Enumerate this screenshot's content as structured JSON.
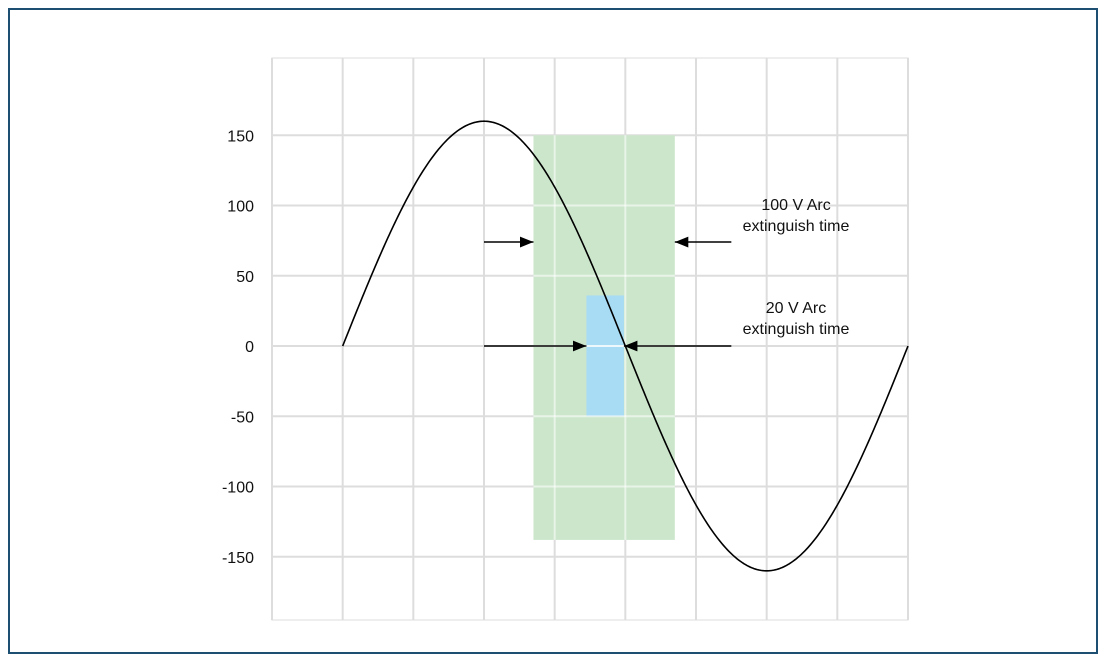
{
  "chart_data": {
    "type": "line",
    "title": "",
    "xlabel": "",
    "ylabel": "",
    "ylim": [
      -195,
      205
    ],
    "xlim": [
      -1.0,
      8.0
    ],
    "x_gridlines": [
      -1,
      0,
      1,
      2,
      3,
      4,
      5,
      6,
      7,
      8
    ],
    "y_ticks": [
      150,
      100,
      50,
      0,
      -50,
      -100,
      -150
    ],
    "y_tick_labels": [
      "150",
      "100",
      "50",
      "0",
      "-50",
      "-100",
      "-150"
    ],
    "grid": true,
    "series": [
      {
        "type": "sine",
        "amplitude": 160,
        "x_start": 0,
        "x_end": 8.0,
        "period": 8.0,
        "color": "#000000"
      }
    ],
    "regions": [
      {
        "label": "100 V Arc extinguish time",
        "x": [
          2.7,
          4.7
        ],
        "y": [
          -138,
          150
        ],
        "color": "#cce6cc"
      },
      {
        "label": "20 V Arc extinguish time",
        "x": [
          3.45,
          3.98
        ],
        "y": [
          -50,
          36
        ],
        "color": "#a8dcf4"
      }
    ],
    "annotations": [
      {
        "lines": [
          "100 V Arc",
          "extinguish time"
        ],
        "arrows": [
          {
            "from_x": 2.0,
            "to_x": 2.7,
            "y": 74
          },
          {
            "from_x": 5.5,
            "to_x": 4.7,
            "y": 74
          }
        ]
      },
      {
        "lines": [
          "20 V Arc",
          "extinguish time"
        ],
        "arrows": [
          {
            "from_x": 2.0,
            "to_x": 3.45,
            "y": 0
          },
          {
            "from_x": 5.5,
            "to_x": 3.98,
            "y": 0
          }
        ]
      }
    ]
  }
}
